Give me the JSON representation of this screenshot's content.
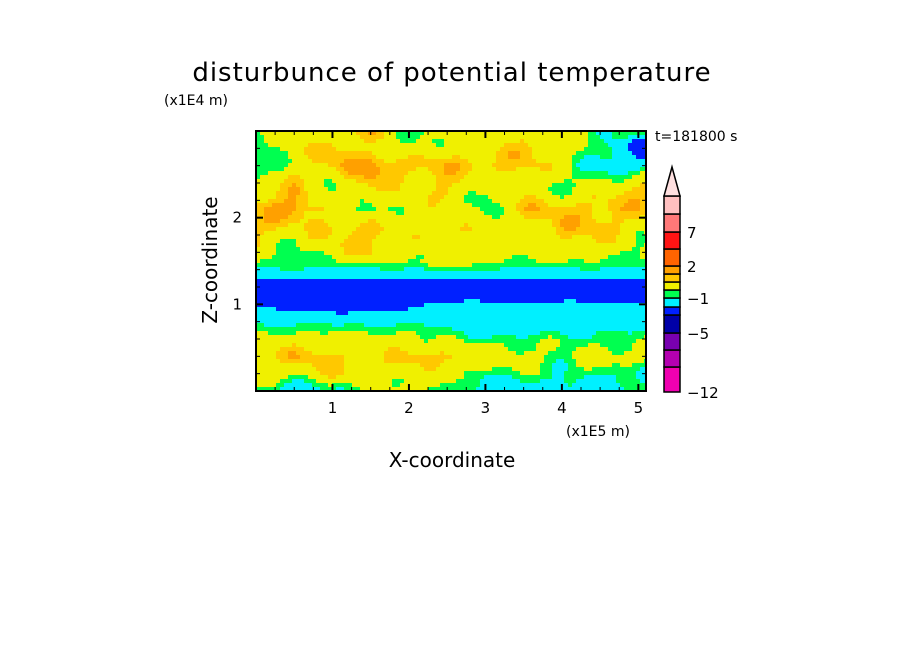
{
  "chart_data": {
    "type": "heatmap",
    "style": "filled-contour",
    "title": "disturbunce of potential temperature",
    "xlabel": "X-coordinate",
    "ylabel": "Z-coordinate",
    "x_unit": "(x1E5 m)",
    "y_unit": "(x1E4 m)",
    "annotation": "t=181800 s",
    "xlim": [
      0,
      5.1
    ],
    "ylim": [
      0,
      3.0
    ],
    "x_ticks": [
      "1",
      "2",
      "3",
      "4",
      "5"
    ],
    "y_ticks": [
      "1",
      "2"
    ],
    "grid": false,
    "colorbar": {
      "placement": "right",
      "levels": [
        -12,
        -10,
        -7,
        -5,
        -3,
        -2,
        -1,
        -0.5,
        0.5,
        1,
        2,
        5,
        7,
        10,
        12
      ],
      "tick_labels": [
        "-12",
        "-5",
        "-1",
        "2",
        "7"
      ],
      "colors": [
        "#f000b0",
        "#b400b0",
        "#7800b0",
        "#0000a8",
        "#0020ff",
        "#00f0ff",
        "#00ff50",
        "#f0f000",
        "#ffc800",
        "#ffa000",
        "#ff6400",
        "#ff1414",
        "#ff7878",
        "#ffc0c0"
      ],
      "over_color": "#ffe0e0",
      "extend": "max"
    },
    "grid_x": [
      0,
      0.5,
      1,
      1.5,
      2,
      2.5,
      3,
      3.5,
      4,
      4.5,
      5
    ],
    "grid_z": [
      2.95,
      2.85,
      2.6,
      2.35,
      2.1,
      1.85,
      1.6,
      1.45,
      1.35,
      1.22,
      1.08,
      0.98,
      0.85,
      0.72,
      0.6,
      0.4,
      0.2,
      0.03
    ],
    "values": [
      [
        -0.75,
        0,
        0,
        0.75,
        -0.75,
        0,
        0,
        0,
        0,
        -0.75,
        -0.75
      ],
      [
        -0.75,
        0,
        0.75,
        0,
        -0.75,
        0,
        0,
        0.75,
        0,
        -0.75,
        -2.5
      ],
      [
        -1.5,
        0,
        0.75,
        1.5,
        0.75,
        0.75,
        0.75,
        0.75,
        0,
        -1.5,
        -1.5
      ],
      [
        0,
        0.75,
        -0.75,
        0.75,
        0,
        0.75,
        -0.75,
        0,
        -0.75,
        0,
        0.75
      ],
      [
        0.75,
        1.5,
        0,
        -0.75,
        0,
        0,
        -0.75,
        0.75,
        0.75,
        0.75,
        0.75
      ],
      [
        0.75,
        0,
        0.75,
        0.75,
        0,
        0.75,
        0,
        0,
        0.75,
        0.75,
        0
      ],
      [
        0,
        -0.75,
        0,
        0.75,
        0,
        0,
        0,
        0,
        0,
        0,
        -0.75
      ],
      [
        -0.75,
        -0.75,
        -0.75,
        -0.75,
        -0.75,
        0,
        -0.75,
        -0.75,
        -0.75,
        -0.75,
        -0.75
      ],
      [
        -1.5,
        -1.5,
        -1.5,
        -1.5,
        -1.5,
        -1.5,
        -1.5,
        -1.5,
        -1.5,
        -1.5,
        -1.5
      ],
      [
        -2.5,
        -2.5,
        -2.5,
        -2.5,
        -2.5,
        -2.5,
        -2.5,
        -2.5,
        -2.5,
        -2.5,
        -2.5
      ],
      [
        -2.5,
        -2.5,
        -2.5,
        -2.5,
        -2.5,
        -2.5,
        -2.5,
        -2.5,
        -2.5,
        -2.5,
        -2.5
      ],
      [
        -2,
        -2.5,
        -2.5,
        -2.5,
        -2.2,
        -1.5,
        -1.5,
        -1.5,
        -1.5,
        -1.5,
        -1.8
      ],
      [
        -1.5,
        -1.5,
        -1.5,
        -1.5,
        -1.5,
        -1.5,
        -1.5,
        -1.5,
        -1.5,
        -1.5,
        -1.5
      ],
      [
        -0.75,
        -0.75,
        -0.75,
        -0.75,
        -0.75,
        -1,
        -1.5,
        -1.5,
        -1.5,
        -1.2,
        -1.2
      ],
      [
        0,
        0,
        0,
        0,
        0,
        -0.75,
        -0.75,
        -0.75,
        -0.75,
        -0.75,
        -0.75
      ],
      [
        0.3,
        0.75,
        0.75,
        0,
        0.75,
        0.75,
        0,
        0,
        -0.75,
        0,
        0
      ],
      [
        0,
        0,
        0.5,
        0,
        0,
        0,
        -0.75,
        -0.75,
        -0.75,
        -0.75,
        -1.5
      ],
      [
        -0.75,
        -1.5,
        -0.75,
        -0.75,
        0,
        -0.75,
        -1.5,
        -1.5,
        -1.5,
        -1.5,
        -0.75
      ]
    ]
  }
}
